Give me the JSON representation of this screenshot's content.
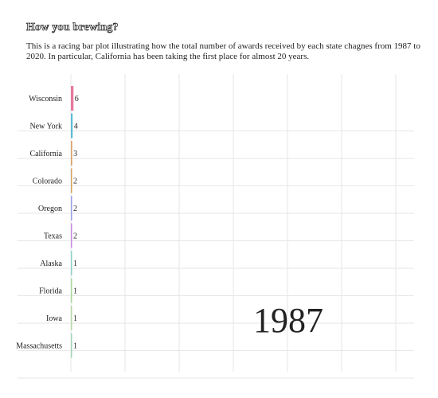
{
  "chart_data": {
    "type": "bar",
    "orientation": "horizontal",
    "title": "How you brewing?",
    "subtitle": "This is a racing bar plot illustrating how the total number of awards received by each state chagnes from 1987 to 2020. In particular, California has been taking the first place for almost 20 years.",
    "year": "1987",
    "categories": [
      "Wisconsin",
      "New York",
      "California",
      "Colorado",
      "Oregon",
      "Texas",
      "Alaska",
      "Florida",
      "Iowa",
      "Massachusetts"
    ],
    "values": [
      6,
      4,
      3,
      2,
      2,
      2,
      1,
      1,
      1,
      1
    ],
    "colors": [
      "#e8799e",
      "#5bbdd6",
      "#d9a26a",
      "#d8a35c",
      "#9aa0e8",
      "#c58ae3",
      "#8fd0c9",
      "#a9d99a",
      "#b7d9a6",
      "#9fd6b8"
    ],
    "grid": true,
    "legend": "none"
  }
}
